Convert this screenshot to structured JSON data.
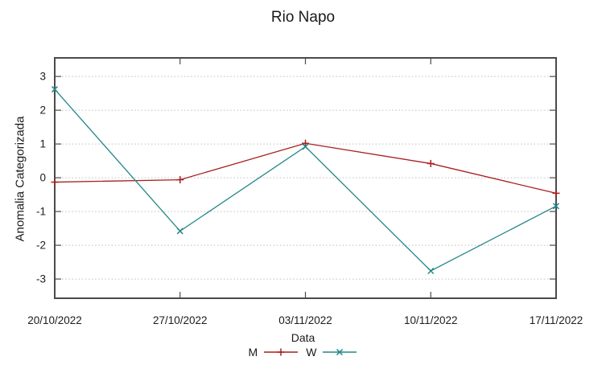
{
  "chart_data": {
    "type": "line",
    "title": "Rio Napo",
    "xlabel": "Data",
    "ylabel": "Anomalia Categorizada",
    "categories": [
      "20/10/2022",
      "27/10/2022",
      "03/11/2022",
      "10/11/2022",
      "17/11/2022"
    ],
    "y_ticks": [
      3,
      2,
      1,
      0,
      -1,
      -2,
      -3
    ],
    "ylim": [
      -3.57,
      3.55
    ],
    "grid": true,
    "legend_position": "bottom-center",
    "series": [
      {
        "name": "M",
        "color": "#a81f1f",
        "marker": "plus",
        "values": [
          -0.13,
          -0.06,
          1.02,
          0.42,
          -0.46
        ]
      },
      {
        "name": "W",
        "color": "#238787",
        "marker": "cross",
        "values": [
          2.62,
          -1.58,
          0.92,
          -2.76,
          -0.84
        ]
      }
    ]
  },
  "colors": {
    "grid": "#bdbdbd",
    "axis": "#4a4a4a",
    "tick_text": "#1c1c1c",
    "background": "#ffffff"
  }
}
